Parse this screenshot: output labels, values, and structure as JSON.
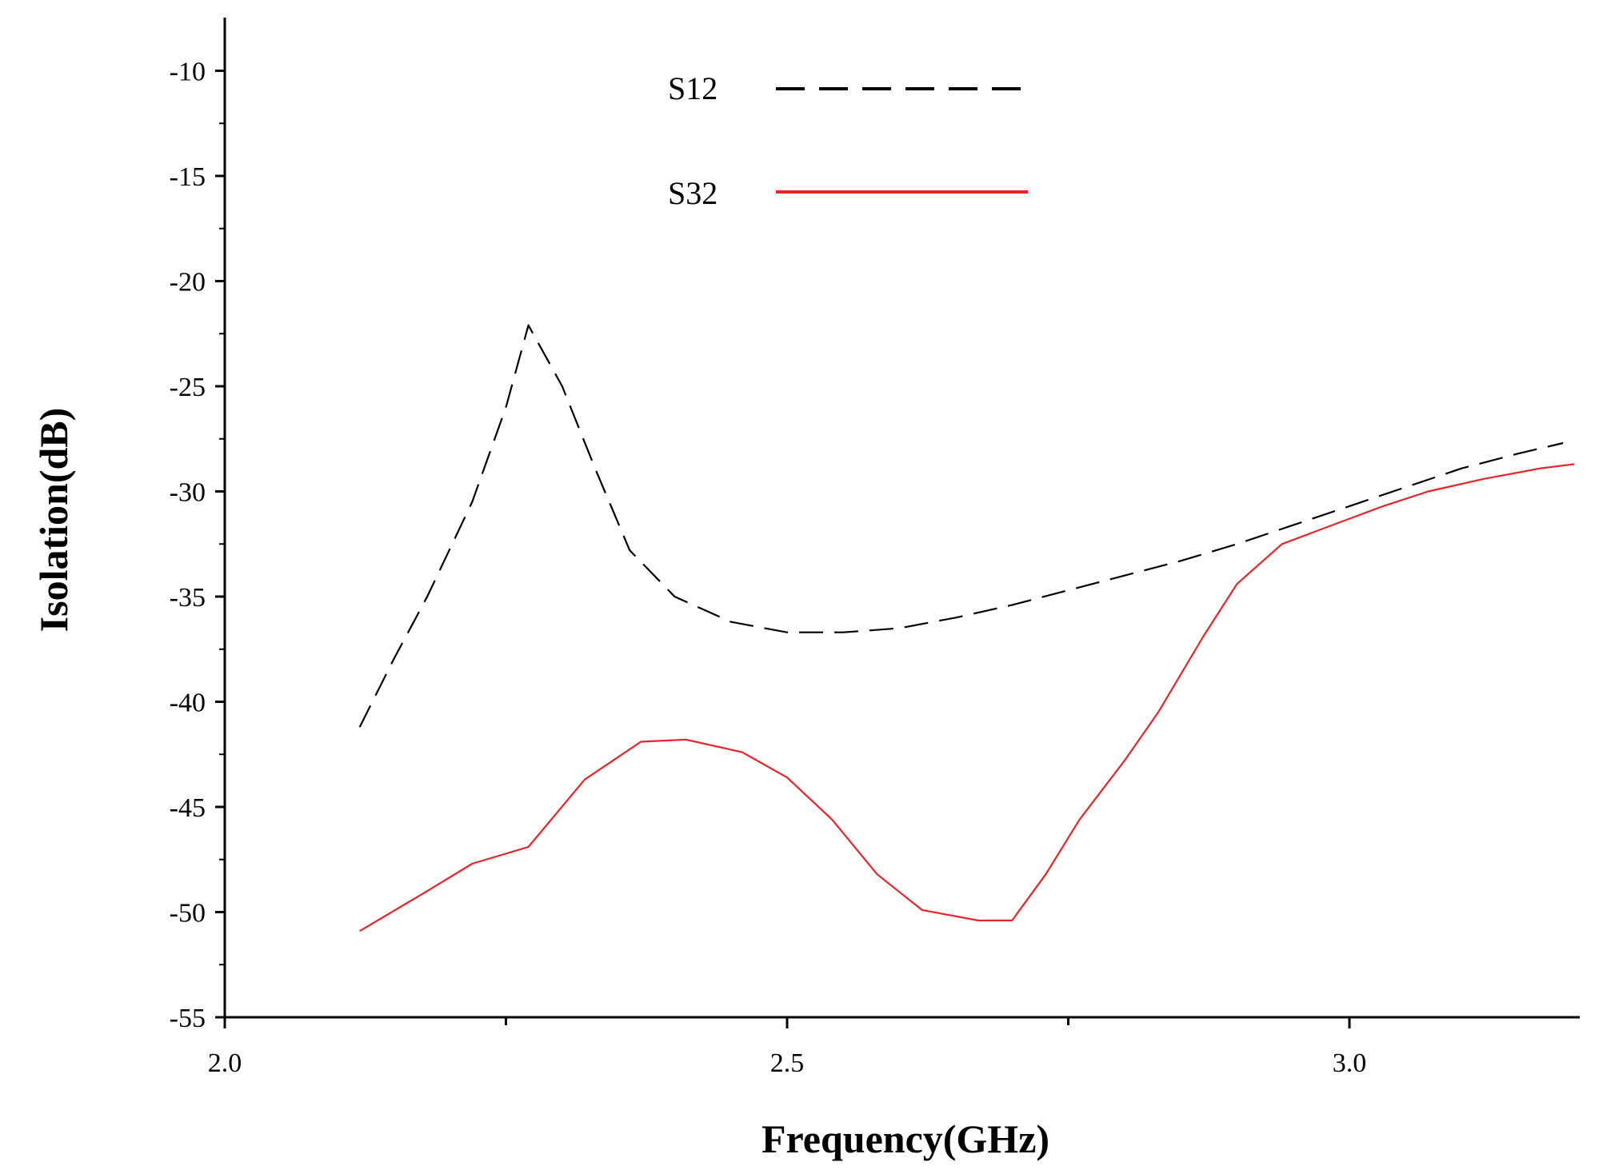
{
  "chart_data": {
    "type": "line",
    "title": "",
    "xlabel": "Frequency(GHz)",
    "ylabel": "Isolation(dB)",
    "xlim": [
      2.0,
      3.2
    ],
    "ylim": [
      -55,
      -7.5
    ],
    "xticks": [
      2.0,
      2.5,
      3.0
    ],
    "xtick_labels": [
      "2.0",
      "2.5",
      "3.0"
    ],
    "yticks": [
      -10,
      -15,
      -20,
      -25,
      -30,
      -35,
      -40,
      -45,
      -50,
      -55
    ],
    "ytick_labels": [
      "-10",
      "-15",
      "-20",
      "-25",
      "-30",
      "-35",
      "-40",
      "-45",
      "-50",
      "-55"
    ],
    "grid": false,
    "legend_position": "top-center",
    "series": [
      {
        "name": "S12",
        "color": "#000000",
        "style": "dashed",
        "x": [
          2.12,
          2.15,
          2.18,
          2.22,
          2.25,
          2.27,
          2.3,
          2.33,
          2.36,
          2.4,
          2.45,
          2.5,
          2.55,
          2.6,
          2.65,
          2.7,
          2.75,
          2.8,
          2.85,
          2.9,
          2.95,
          3.0,
          3.05,
          3.1,
          3.15,
          3.19
        ],
        "y": [
          -41.2,
          -38.0,
          -35.0,
          -30.5,
          -26.0,
          -22.1,
          -25.0,
          -29.0,
          -32.8,
          -35.0,
          -36.2,
          -36.7,
          -36.7,
          -36.5,
          -36.0,
          -35.4,
          -34.7,
          -34.0,
          -33.3,
          -32.5,
          -31.6,
          -30.7,
          -29.8,
          -28.9,
          -28.2,
          -27.7
        ]
      },
      {
        "name": "S32",
        "color": "#e8232a",
        "style": "solid",
        "x": [
          2.12,
          2.18,
          2.22,
          2.27,
          2.32,
          2.37,
          2.41,
          2.46,
          2.5,
          2.54,
          2.58,
          2.62,
          2.67,
          2.7,
          2.73,
          2.76,
          2.8,
          2.83,
          2.87,
          2.9,
          2.94,
          2.99,
          3.03,
          3.07,
          3.12,
          3.17,
          3.2
        ],
        "y": [
          -50.9,
          -49.0,
          -47.7,
          -46.9,
          -43.7,
          -41.9,
          -41.8,
          -42.4,
          -43.6,
          -45.6,
          -48.2,
          -49.9,
          -50.4,
          -50.4,
          -48.2,
          -45.6,
          -42.8,
          -40.5,
          -36.9,
          -34.4,
          -32.5,
          -31.5,
          -30.7,
          -30.0,
          -29.4,
          -28.9,
          -28.7
        ]
      }
    ]
  }
}
